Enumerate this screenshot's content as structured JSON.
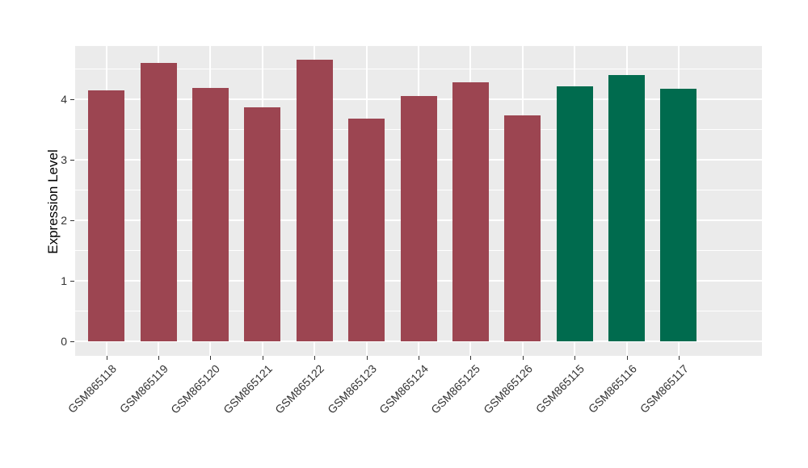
{
  "figure": {
    "background": "#FFFFFF",
    "panel_background": "#EBEBEB",
    "grid_color": "#FFFFFF",
    "tick_color": "#333333",
    "axis_text_color": "#333333",
    "axis_title_color": "#000000"
  },
  "chart_data": {
    "type": "bar",
    "title": "",
    "xlabel": "",
    "ylabel": "Expression Level",
    "categories": [
      "GSM865118",
      "GSM865119",
      "GSM865120",
      "GSM865121",
      "GSM865122",
      "GSM865123",
      "GSM865124",
      "GSM865125",
      "GSM865126",
      "GSM865115",
      "GSM865116",
      "GSM865117"
    ],
    "values": [
      4.14,
      4.59,
      4.18,
      3.86,
      4.65,
      3.68,
      4.05,
      4.28,
      3.73,
      4.21,
      4.39,
      4.17
    ],
    "bar_colors": [
      "#9C4551",
      "#9C4551",
      "#9C4551",
      "#9C4551",
      "#9C4551",
      "#9C4551",
      "#9C4551",
      "#9C4551",
      "#9C4551",
      "#006B4E",
      "#006B4E",
      "#006B4E"
    ],
    "groups": [
      {
        "name": "maroon-group",
        "color": "#9C4551",
        "categories": [
          "GSM865118",
          "GSM865119",
          "GSM865120",
          "GSM865121",
          "GSM865122",
          "GSM865123",
          "GSM865124",
          "GSM865125",
          "GSM865126"
        ]
      },
      {
        "name": "green-group",
        "color": "#006B4E",
        "categories": [
          "GSM865115",
          "GSM865116",
          "GSM865117"
        ]
      }
    ],
    "yticks": [
      0,
      1,
      2,
      3,
      4
    ],
    "minor_yticks": [
      0.5,
      1.5,
      2.5,
      3.5,
      4.5
    ],
    "ylim": [
      -0.23,
      4.88
    ],
    "grid": "major-and-minor",
    "legend_position": "none",
    "x_label_angle": 45,
    "bar_relative_width": 0.7
  }
}
